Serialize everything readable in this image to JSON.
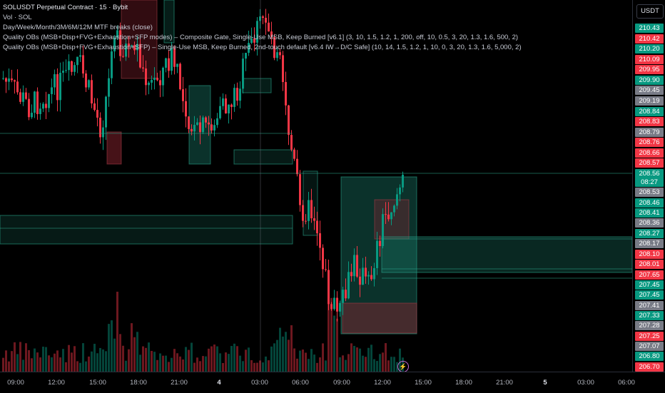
{
  "legend": {
    "symbol": "SOLUSDT Perpetual Contract · 15 · Bybit",
    "line2": "Vol · SOL",
    "line3": "Day/Week/Month/3M/6M/12M MTF breaks (close)",
    "line4": "Quality OBs (MSB+Disp+FVG+Exhaustion+SFP modes) – Composite Gate, Single-Use MSB, Keep Burned [v6.1] (3, 10, 1.5, 1.2, 1, 200, off, 10, 0.5, 3, 20, 1.3, 1.6, 500, 2)",
    "line5": "Quality OBs (MSB+Disp+FVG+Exhaustion+SFP) – Single-Use MSB, Keep Burned, 2nd-touch default [v6.4 IW→D/C Safe] (10, 14, 1.5, 1.2, 1, 10, 0, 3, 20, 1.3, 1.6, 5,000, 2)"
  },
  "currency": "USDT",
  "price_labels": [
    {
      "text": "210.43",
      "color": "#089981"
    },
    {
      "text": "210.42",
      "color": "#f23645"
    },
    {
      "text": "210.20",
      "color": "#089981"
    },
    {
      "text": "210.09",
      "color": "#f23645"
    },
    {
      "text": "209.95",
      "color": "#f23645"
    },
    {
      "text": "209.90",
      "color": "#089981"
    },
    {
      "text": "209.45",
      "color": "#787b86"
    },
    {
      "text": "209.19",
      "color": "#787b86"
    },
    {
      "text": "208.84",
      "color": "#089981"
    },
    {
      "text": "208.83",
      "color": "#f23645"
    },
    {
      "text": "208.79",
      "color": "#787b86"
    },
    {
      "text": "208.76",
      "color": "#f23645"
    },
    {
      "text": "208.66",
      "color": "#f23645"
    },
    {
      "text": "208.57",
      "color": "#f23645"
    },
    {
      "text": "208.56",
      "color": "#089981"
    },
    {
      "text": "08:27",
      "color": "#089981"
    },
    {
      "text": "208.53",
      "color": "#787b86"
    },
    {
      "text": "208.46",
      "color": "#089981"
    },
    {
      "text": "208.41",
      "color": "#089981"
    },
    {
      "text": "208.36",
      "color": "#787b86"
    },
    {
      "text": "208.27",
      "color": "#089981"
    },
    {
      "text": "208.17",
      "color": "#787b86"
    },
    {
      "text": "208.10",
      "color": "#f23645"
    },
    {
      "text": "208.01",
      "color": "#f23645"
    },
    {
      "text": "207.65",
      "color": "#f23645"
    },
    {
      "text": "207.45",
      "color": "#089981"
    },
    {
      "text": "207.45",
      "color": "#089981"
    },
    {
      "text": "207.41",
      "color": "#787b86"
    },
    {
      "text": "207.33",
      "color": "#089981"
    },
    {
      "text": "207.28",
      "color": "#787b86"
    },
    {
      "text": "207.25",
      "color": "#f23645"
    },
    {
      "text": "207.07",
      "color": "#787b86"
    },
    {
      "text": "206.80",
      "color": "#089981"
    },
    {
      "text": "206.70",
      "color": "#f23645"
    }
  ],
  "time_labels": [
    {
      "text": "09:00",
      "bold": false
    },
    {
      "text": "12:00",
      "bold": false
    },
    {
      "text": "15:00",
      "bold": false
    },
    {
      "text": "18:00",
      "bold": false
    },
    {
      "text": "21:00",
      "bold": false
    },
    {
      "text": "4",
      "bold": true
    },
    {
      "text": "03:00",
      "bold": false
    },
    {
      "text": "06:00",
      "bold": false
    },
    {
      "text": "09:00",
      "bold": false
    },
    {
      "text": "12:00",
      "bold": false
    },
    {
      "text": "15:00",
      "bold": false
    },
    {
      "text": "18:00",
      "bold": false
    },
    {
      "text": "21:00",
      "bold": false
    },
    {
      "text": "5",
      "bold": true
    },
    {
      "text": "03:00",
      "bold": false
    },
    {
      "text": "06:00",
      "bold": false
    }
  ],
  "colors": {
    "up": "#089981",
    "down": "#f23645",
    "neutral": "#787b86",
    "zone_teal": "#1f8f7a",
    "zone_red": "#8b2330"
  },
  "bolt_icon": "⚡"
}
